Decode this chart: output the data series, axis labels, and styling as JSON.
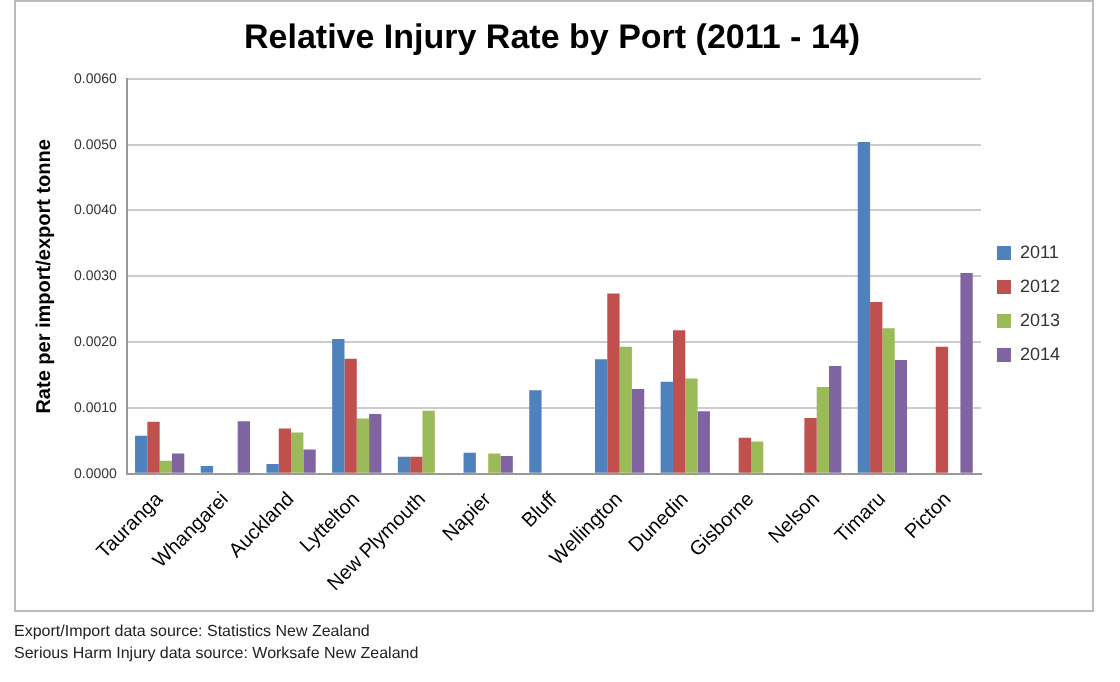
{
  "chart_data": {
    "type": "bar",
    "title": "Relative Injury Rate by Port (2011 - 14)",
    "ylabel": "Rate per import/export tonne",
    "categories": [
      "Tauranga",
      "Whangarei",
      "Auckland",
      "Lyttelton",
      "New Plymouth",
      "Napier",
      "Bluff",
      "Wellington",
      "Dunedin",
      "Gisborne",
      "Nelson",
      "Timaru",
      "Picton"
    ],
    "series": [
      {
        "name": "2011",
        "color": "#4f81bd",
        "values": [
          0.00058,
          0.00012,
          0.00015,
          0.00205,
          0.00026,
          0.00032,
          0.00127,
          0.00174,
          0.0014,
          null,
          null,
          0.00504,
          null
        ]
      },
      {
        "name": "2012",
        "color": "#c0504d",
        "values": [
          0.00079,
          null,
          0.00069,
          0.00175,
          0.00026,
          null,
          null,
          0.00274,
          0.00218,
          0.00055,
          0.00085,
          0.00261,
          0.00193
        ]
      },
      {
        "name": "2013",
        "color": "#9bbb59",
        "values": [
          0.0002,
          null,
          0.00063,
          0.00084,
          0.00096,
          0.00031,
          null,
          0.00193,
          0.00145,
          0.00049,
          0.00132,
          0.00221,
          null
        ]
      },
      {
        "name": "2014",
        "color": "#8064a2",
        "values": [
          0.00031,
          0.0008,
          0.00037,
          0.00091,
          null,
          0.00027,
          null,
          0.00129,
          0.00095,
          null,
          0.00164,
          0.00173,
          0.00305
        ]
      }
    ],
    "ylim": [
      0,
      0.006
    ],
    "yticks": [
      {
        "value": 0,
        "label": "0.0000"
      },
      {
        "value": 0.001,
        "label": "0.0010"
      },
      {
        "value": 0.002,
        "label": "0.0020"
      },
      {
        "value": 0.003,
        "label": "0.0030"
      },
      {
        "value": 0.004,
        "label": "0.0040"
      },
      {
        "value": 0.005,
        "label": "0.0050"
      },
      {
        "value": 0.006,
        "label": "0.0060"
      }
    ],
    "grid": "y",
    "legend": "right",
    "annotations": [
      "Export/Import data source: Statistics New Zealand",
      "Serious Harm Injury data source: Worksafe New Zealand"
    ]
  }
}
